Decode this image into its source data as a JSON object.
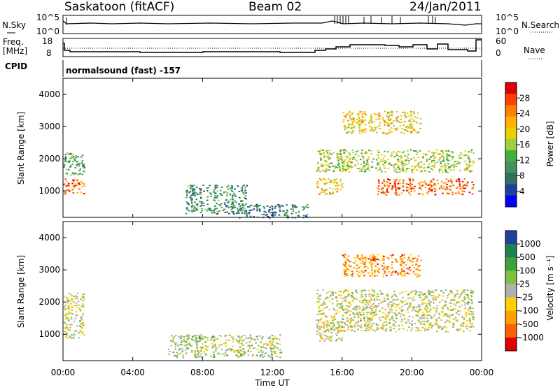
{
  "header": {
    "station": "Saskatoon (fitACF)",
    "beam": "Beam 02",
    "date": "24/Jan/2011"
  },
  "panels": {
    "nsky": {
      "left_label": "N.Sky",
      "right_label": "N.Search",
      "left_ticks": [
        "10^5",
        "10^0"
      ],
      "right_ticks": [
        "10^5",
        "10^0"
      ]
    },
    "freq": {
      "left_label_1": "Freq.",
      "left_label_2": "[MHz]",
      "right_label": "Nave",
      "left_ticks": [
        "18",
        "8"
      ],
      "right_ticks": [
        "60",
        "0"
      ]
    },
    "cpid": {
      "label": "CPID",
      "text": "normalsound (fast) -157"
    }
  },
  "colorbars": {
    "power": {
      "title": "Power [dB]",
      "ticks": [
        "28",
        "24",
        "20",
        "16",
        "12",
        "8",
        "4"
      ],
      "colors": [
        "#e00000",
        "#ff4000",
        "#ff8000",
        "#ffb000",
        "#e8d000",
        "#9fd040",
        "#40b040",
        "#409060",
        "#307060",
        "#2040a0",
        "#0000ff"
      ]
    },
    "velocity": {
      "title": "Velocity [m s⁻¹]",
      "ticks": [
        "1000",
        "500",
        "100",
        "25",
        "-25",
        "-100",
        "-500",
        "-1000"
      ],
      "colors": [
        "#2040a0",
        "#208050",
        "#40a040",
        "#80c040",
        "#b0b0b0",
        "#ffd000",
        "#ffa000",
        "#ff6000",
        "#e00000"
      ]
    }
  },
  "axes": {
    "ylabel": "Slant Range [km]",
    "yticks": [
      "4000",
      "3000",
      "2000",
      "1000"
    ],
    "xlabel": "Time UT",
    "xticks": [
      "00:00",
      "04:00",
      "08:00",
      "12:00",
      "16:00",
      "20:00",
      "00:00"
    ]
  },
  "chart_data": [
    {
      "type": "heatmap",
      "title": "",
      "xlabel": "Time UT",
      "ylabel": "Slant Range [km]",
      "xlim": [
        0,
        24
      ],
      "ylim": [
        180,
        4500
      ],
      "colorbar": "Power [dB]",
      "regions": [
        {
          "t": [
            0.0,
            1.2
          ],
          "r": [
            900,
            1400
          ],
          "value": 26
        },
        {
          "t": [
            0.0,
            1.2
          ],
          "r": [
            1500,
            2200
          ],
          "value": 12
        },
        {
          "t": [
            7.0,
            10.5
          ],
          "r": [
            300,
            1200
          ],
          "value": 10
        },
        {
          "t": [
            10.0,
            14.0
          ],
          "r": [
            180,
            600
          ],
          "value": 8
        },
        {
          "t": [
            14.5,
            16.0
          ],
          "r": [
            900,
            1400
          ],
          "value": 20
        },
        {
          "t": [
            14.5,
            23.5
          ],
          "r": [
            1600,
            2300
          ],
          "value": 16
        },
        {
          "t": [
            18.0,
            23.5
          ],
          "r": [
            900,
            1400
          ],
          "value": 26
        },
        {
          "t": [
            16.0,
            20.5
          ],
          "r": [
            2800,
            3500
          ],
          "value": 20
        }
      ]
    },
    {
      "type": "heatmap",
      "title": "",
      "xlabel": "Time UT",
      "ylabel": "Slant Range [km]",
      "xlim": [
        0,
        24
      ],
      "ylim": [
        180,
        4500
      ],
      "colorbar": "Velocity [m s⁻¹]",
      "regions": [
        {
          "t": [
            0.0,
            1.2
          ],
          "r": [
            900,
            2300
          ],
          "value": 0
        },
        {
          "t": [
            6.0,
            12.5
          ],
          "r": [
            300,
            1000
          ],
          "value": 100
        },
        {
          "t": [
            14.5,
            16.0
          ],
          "r": [
            800,
            1400
          ],
          "value": -100
        },
        {
          "t": [
            14.5,
            23.5
          ],
          "r": [
            1100,
            2400
          ],
          "value": 0
        },
        {
          "t": [
            16.0,
            20.5
          ],
          "r": [
            2800,
            3500
          ],
          "value": -500
        }
      ]
    }
  ]
}
